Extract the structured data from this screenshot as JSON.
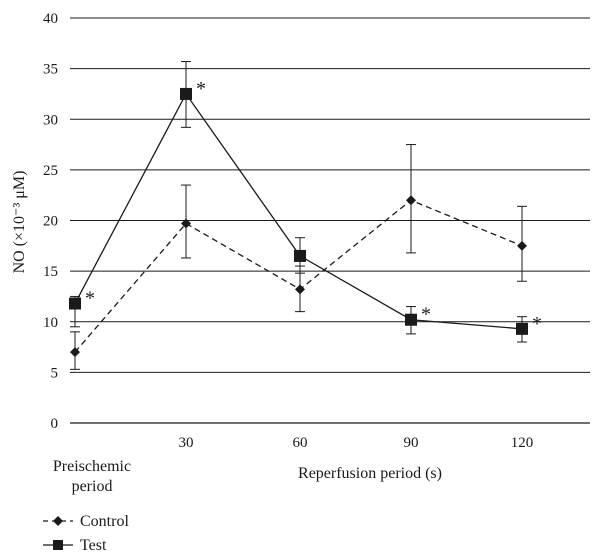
{
  "chart_data": {
    "type": "line",
    "ylabel": "NO (×10⁻³ μM)",
    "xlabel": "Reperfusion period (s)",
    "x_first_label_line1": "Preischemic",
    "x_first_label_line2": "period",
    "categories": [
      "",
      "30",
      "60",
      "90",
      "120"
    ],
    "ylim": [
      0,
      40
    ],
    "yticks": [
      0,
      5,
      10,
      15,
      20,
      25,
      30,
      35,
      40
    ],
    "grid": true,
    "legend_position": "bottom-left",
    "series": [
      {
        "name": "Control",
        "style": "dashed",
        "marker": "diamond",
        "values": [
          7.0,
          19.7,
          13.2,
          22.0,
          17.5
        ],
        "err_low": [
          5.3,
          16.3,
          11.0,
          16.8,
          14.0
        ],
        "err_high": [
          9.0,
          23.5,
          15.5,
          27.5,
          21.4
        ],
        "significant": [
          false,
          false,
          false,
          false,
          false
        ]
      },
      {
        "name": "Test",
        "style": "solid",
        "marker": "square",
        "values": [
          11.8,
          32.5,
          16.5,
          10.2,
          9.3
        ],
        "err_low": [
          9.5,
          29.2,
          14.8,
          8.8,
          8.0
        ],
        "err_high": [
          12.5,
          35.7,
          18.3,
          11.5,
          10.5
        ],
        "significant": [
          true,
          true,
          false,
          true,
          true
        ]
      }
    ],
    "significance_marker": "*",
    "colors": {
      "line": "#1a1a1a",
      "grid": "#1a1a1a"
    }
  }
}
